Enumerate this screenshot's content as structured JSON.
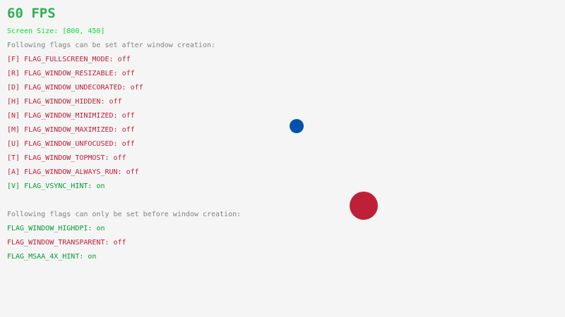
{
  "fps": "60 FPS",
  "screen_size": "Screen Size: [800, 450]",
  "after_header": "Following flags can be set after window creation:",
  "after_flags": [
    {
      "label": "[F] FLAG_FULLSCREEN_MODE: ",
      "state": "off"
    },
    {
      "label": "[R] FLAG_WINDOW_RESIZABLE: ",
      "state": "off"
    },
    {
      "label": "[D] FLAG_WINDOW_UNDECORATED: ",
      "state": "off"
    },
    {
      "label": "[H] FLAG_WINDOW_HIDDEN: ",
      "state": "off"
    },
    {
      "label": "[N] FLAG_WINDOW_MINIMIZED: ",
      "state": "off"
    },
    {
      "label": "[M] FLAG_WINDOW_MAXIMIZED: ",
      "state": "off"
    },
    {
      "label": "[U] FLAG_WINDOW_UNFOCUSED: ",
      "state": "off"
    },
    {
      "label": "[T] FLAG_WINDOW_TOPMOST: ",
      "state": "off"
    },
    {
      "label": "[A] FLAG_WINDOW_ALWAYS_RUN: ",
      "state": "off"
    },
    {
      "label": "[V] FLAG_VSYNC_HINT: ",
      "state": "on"
    }
  ],
  "before_header": "Following flags can only be set before window creation:",
  "before_flags": [
    {
      "label": "FLAG_WINDOW_HIGHDPI: ",
      "state": "on"
    },
    {
      "label": "FLAG_WINDOW_TRANSPARENT: ",
      "state": "off"
    },
    {
      "label": "FLAG_MSAA_4X_HINT: ",
      "state": "on"
    }
  ],
  "colors": {
    "on": "#009e2f",
    "off": "#be2137",
    "small_ball": "#0052ac",
    "large_ball": "#be2137"
  }
}
